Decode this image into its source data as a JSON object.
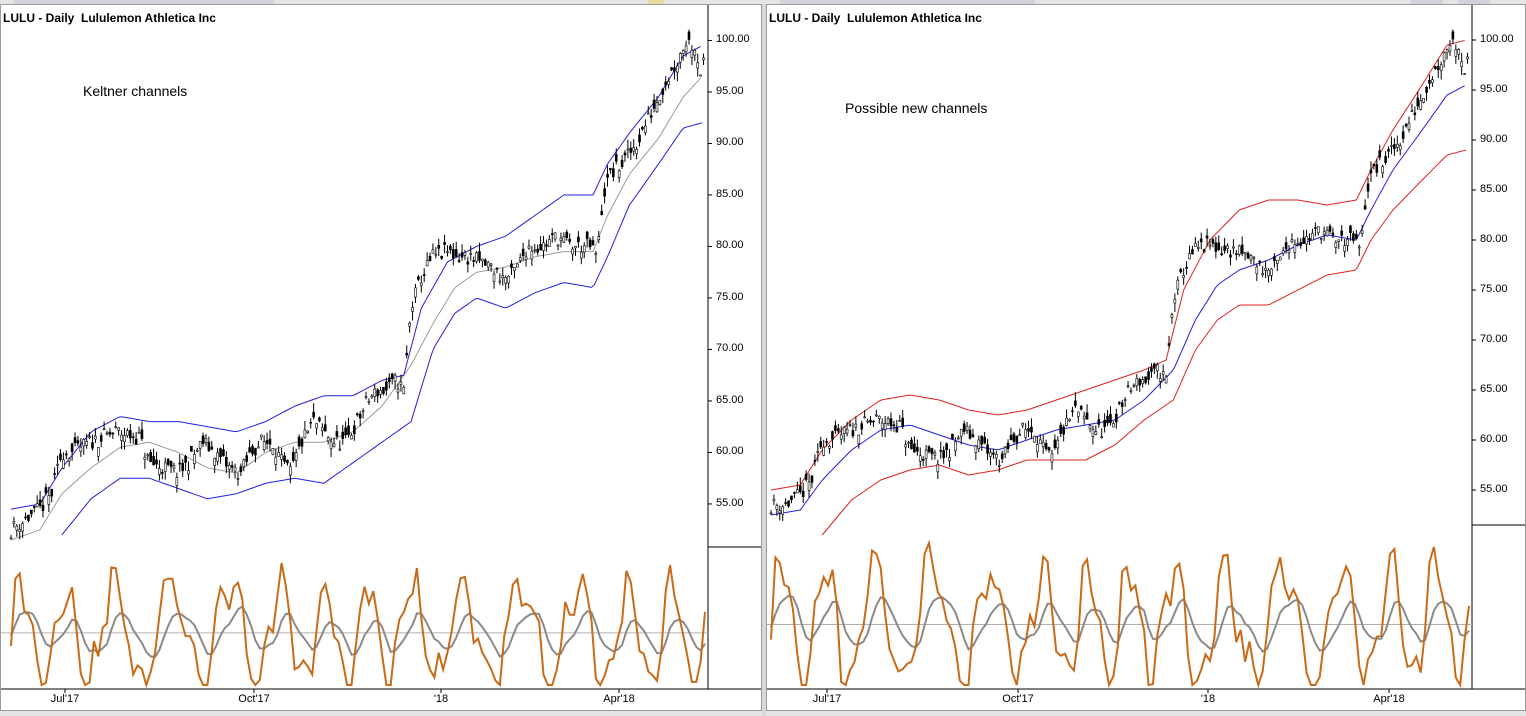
{
  "window": {
    "left_pane_title": "LULU - Daily  Lululemon Athletica Inc",
    "right_pane_title": "LULU - Daily  Lululemon Athletica Inc",
    "left_annotation": "Keltner channels",
    "right_annotation": "Possible new channels",
    "colors": {
      "price": "#000000",
      "mid": "#9a9a9a",
      "blue": "#2020e0",
      "red": "#e02020",
      "osc": "#c86a18",
      "osc_avg": "#8a8a8a",
      "baseline": "#b0b0b0"
    }
  },
  "chart_data": [
    {
      "type": "candlestick",
      "title": "LULU - Daily  Lululemon Athletica Inc",
      "annotation": "Keltner channels",
      "x_tick_labels": [
        "Jul'17",
        "Oct'17",
        "'18",
        "Apr'18"
      ],
      "y_tick_labels": [
        "100.00",
        "95.00",
        "90.00",
        "85.00",
        "80.00",
        "75.00",
        "70.00",
        "65.00",
        "60.00",
        "55.00"
      ],
      "ylim": [
        51.5,
        101.5
      ],
      "price_close": [
        [
          0,
          52.5
        ],
        [
          10,
          53.5
        ],
        [
          20,
          54.5
        ],
        [
          28,
          56
        ],
        [
          35,
          60
        ],
        [
          42,
          60
        ],
        [
          55,
          61
        ],
        [
          72,
          62
        ],
        [
          88,
          61.5
        ],
        [
          95,
          59
        ],
        [
          105,
          58.5
        ],
        [
          115,
          58
        ],
        [
          122,
          59
        ],
        [
          132,
          61
        ],
        [
          140,
          60
        ],
        [
          150,
          58.5
        ],
        [
          158,
          58
        ],
        [
          165,
          60
        ],
        [
          172,
          61
        ],
        [
          180,
          61
        ],
        [
          186,
          59
        ],
        [
          192,
          58
        ],
        [
          200,
          61
        ],
        [
          208,
          63
        ],
        [
          215,
          62
        ],
        [
          222,
          61
        ],
        [
          230,
          61
        ],
        [
          238,
          63
        ],
        [
          245,
          65
        ],
        [
          252,
          66
        ],
        [
          258,
          66
        ],
        [
          265,
          67
        ],
        [
          270,
          66
        ],
        [
          275,
          74
        ],
        [
          282,
          77
        ],
        [
          290,
          79
        ],
        [
          300,
          79.5
        ],
        [
          308,
          79
        ],
        [
          315,
          79
        ],
        [
          322,
          78.5
        ],
        [
          330,
          78
        ],
        [
          337,
          77
        ],
        [
          343,
          77
        ],
        [
          348,
          78
        ],
        [
          355,
          80
        ],
        [
          365,
          80
        ],
        [
          375,
          81
        ],
        [
          385,
          80
        ],
        [
          392,
          80
        ],
        [
          398,
          80
        ],
        [
          403,
          79
        ],
        [
          407,
          85
        ],
        [
          412,
          87
        ],
        [
          420,
          88
        ],
        [
          430,
          90
        ],
        [
          440,
          93
        ],
        [
          450,
          96
        ],
        [
          458,
          98
        ],
        [
          464,
          100
        ],
        [
          470,
          99.5
        ],
        [
          474,
          97
        ],
        [
          477,
          98
        ]
      ],
      "keltner_mid": [
        [
          0,
          51.5
        ],
        [
          20,
          52.5
        ],
        [
          35,
          56
        ],
        [
          55,
          58.5
        ],
        [
          75,
          60.5
        ],
        [
          95,
          61
        ],
        [
          115,
          60
        ],
        [
          135,
          58.5
        ],
        [
          155,
          58
        ],
        [
          175,
          60
        ],
        [
          195,
          61
        ],
        [
          215,
          61
        ],
        [
          235,
          62
        ],
        [
          255,
          64.5
        ],
        [
          275,
          68.5
        ],
        [
          290,
          72.5
        ],
        [
          305,
          76
        ],
        [
          320,
          77.5
        ],
        [
          340,
          78
        ],
        [
          360,
          79
        ],
        [
          380,
          79.5
        ],
        [
          400,
          79.5
        ],
        [
          410,
          83
        ],
        [
          425,
          87
        ],
        [
          445,
          90.5
        ],
        [
          462,
          94.5
        ],
        [
          475,
          96.5
        ]
      ],
      "upper_band": [
        [
          0,
          54.5
        ],
        [
          20,
          55
        ],
        [
          35,
          58.5
        ],
        [
          55,
          62
        ],
        [
          75,
          63.5
        ],
        [
          95,
          63
        ],
        [
          115,
          63
        ],
        [
          135,
          62.5
        ],
        [
          155,
          62
        ],
        [
          175,
          63
        ],
        [
          195,
          64.5
        ],
        [
          215,
          65.5
        ],
        [
          235,
          65.5
        ],
        [
          255,
          67
        ],
        [
          270,
          67.5
        ],
        [
          282,
          74
        ],
        [
          300,
          78.5
        ],
        [
          320,
          80
        ],
        [
          340,
          81
        ],
        [
          360,
          83
        ],
        [
          380,
          85
        ],
        [
          400,
          85
        ],
        [
          410,
          88
        ],
        [
          425,
          91
        ],
        [
          445,
          94.5
        ],
        [
          462,
          98.5
        ],
        [
          475,
          99.5
        ]
      ],
      "lower_band": [
        [
          35,
          52
        ],
        [
          55,
          55.5
        ],
        [
          75,
          57.5
        ],
        [
          95,
          57.5
        ],
        [
          115,
          56.5
        ],
        [
          135,
          55.5
        ],
        [
          155,
          56
        ],
        [
          175,
          57
        ],
        [
          195,
          57.5
        ],
        [
          215,
          57
        ],
        [
          235,
          59
        ],
        [
          255,
          61
        ],
        [
          275,
          63
        ],
        [
          290,
          70
        ],
        [
          305,
          73.5
        ],
        [
          320,
          75
        ],
        [
          340,
          74
        ],
        [
          360,
          75.5
        ],
        [
          380,
          76.5
        ],
        [
          400,
          76
        ],
        [
          410,
          79
        ],
        [
          425,
          84
        ],
        [
          445,
          88
        ],
        [
          462,
          91.5
        ],
        [
          475,
          92
        ]
      ]
    },
    {
      "type": "candlestick",
      "title": "LULU - Daily  Lululemon Athletica Inc",
      "annotation": "Possible new channels",
      "x_tick_labels": [
        "Jul'17",
        "Oct'17",
        "'18",
        "Apr'18"
      ],
      "y_tick_labels": [
        "100.00",
        "95.00",
        "90.00",
        "85.00",
        "80.00",
        "75.00",
        "70.00",
        "65.00",
        "60.00",
        "55.00"
      ],
      "ylim": [
        51.5,
        101.5
      ],
      "price_close": [
        [
          0,
          53.5
        ],
        [
          10,
          53.5
        ],
        [
          20,
          54.5
        ],
        [
          28,
          56
        ],
        [
          35,
          60
        ],
        [
          42,
          60
        ],
        [
          55,
          61
        ],
        [
          72,
          62
        ],
        [
          88,
          61.5
        ],
        [
          95,
          59
        ],
        [
          105,
          58.5
        ],
        [
          115,
          58
        ],
        [
          122,
          59
        ],
        [
          132,
          61
        ],
        [
          140,
          60
        ],
        [
          150,
          58.5
        ],
        [
          158,
          58
        ],
        [
          165,
          60
        ],
        [
          172,
          61
        ],
        [
          180,
          61
        ],
        [
          186,
          59
        ],
        [
          192,
          58
        ],
        [
          200,
          61
        ],
        [
          208,
          63
        ],
        [
          215,
          62
        ],
        [
          222,
          61
        ],
        [
          230,
          61
        ],
        [
          238,
          63
        ],
        [
          245,
          65
        ],
        [
          252,
          66
        ],
        [
          258,
          66
        ],
        [
          265,
          67
        ],
        [
          270,
          66
        ],
        [
          275,
          74
        ],
        [
          282,
          77
        ],
        [
          290,
          79
        ],
        [
          300,
          79.5
        ],
        [
          308,
          79
        ],
        [
          315,
          79
        ],
        [
          322,
          78.5
        ],
        [
          330,
          78
        ],
        [
          337,
          77
        ],
        [
          343,
          77
        ],
        [
          348,
          78
        ],
        [
          355,
          80
        ],
        [
          365,
          80
        ],
        [
          375,
          81
        ],
        [
          385,
          80
        ],
        [
          392,
          80
        ],
        [
          398,
          80
        ],
        [
          403,
          79
        ],
        [
          407,
          85
        ],
        [
          412,
          87
        ],
        [
          420,
          88
        ],
        [
          430,
          90
        ],
        [
          440,
          93
        ],
        [
          450,
          96
        ],
        [
          458,
          98
        ],
        [
          464,
          100
        ],
        [
          470,
          99.5
        ],
        [
          474,
          97
        ],
        [
          477,
          98
        ]
      ],
      "upper_band": [
        [
          0,
          55
        ],
        [
          20,
          55.5
        ],
        [
          35,
          59
        ],
        [
          55,
          62
        ],
        [
          75,
          64
        ],
        [
          95,
          64.5
        ],
        [
          115,
          64
        ],
        [
          135,
          63
        ],
        [
          155,
          62.5
        ],
        [
          175,
          63
        ],
        [
          195,
          64
        ],
        [
          215,
          65
        ],
        [
          235,
          66
        ],
        [
          255,
          67
        ],
        [
          270,
          68
        ],
        [
          282,
          75
        ],
        [
          300,
          80
        ],
        [
          320,
          83
        ],
        [
          340,
          84
        ],
        [
          360,
          84
        ],
        [
          380,
          83.5
        ],
        [
          400,
          84
        ],
        [
          410,
          87
        ],
        [
          425,
          91
        ],
        [
          445,
          95.5
        ],
        [
          462,
          99.5
        ],
        [
          475,
          100
        ]
      ],
      "lower_band": [
        [
          35,
          50.5
        ],
        [
          55,
          54
        ],
        [
          75,
          56
        ],
        [
          95,
          57
        ],
        [
          115,
          57.5
        ],
        [
          135,
          56.5
        ],
        [
          155,
          57
        ],
        [
          175,
          58
        ],
        [
          195,
          58
        ],
        [
          215,
          58
        ],
        [
          235,
          59.5
        ],
        [
          255,
          62
        ],
        [
          275,
          64
        ],
        [
          290,
          69
        ],
        [
          305,
          72
        ],
        [
          320,
          73.5
        ],
        [
          340,
          73.5
        ],
        [
          360,
          75
        ],
        [
          380,
          76.5
        ],
        [
          400,
          77
        ],
        [
          410,
          80
        ],
        [
          425,
          83
        ],
        [
          445,
          86
        ],
        [
          462,
          88.5
        ],
        [
          475,
          89
        ]
      ],
      "blue_line": [
        [
          0,
          52.5
        ],
        [
          20,
          53
        ],
        [
          35,
          56
        ],
        [
          55,
          59
        ],
        [
          75,
          61
        ],
        [
          95,
          61.5
        ],
        [
          115,
          60.5
        ],
        [
          135,
          59.5
        ],
        [
          155,
          59
        ],
        [
          175,
          60
        ],
        [
          195,
          61
        ],
        [
          215,
          61.5
        ],
        [
          235,
          62
        ],
        [
          255,
          64
        ],
        [
          275,
          67
        ],
        [
          290,
          72
        ],
        [
          305,
          75.5
        ],
        [
          320,
          77
        ],
        [
          340,
          78
        ],
        [
          360,
          79.5
        ],
        [
          380,
          80.5
        ],
        [
          400,
          80
        ],
        [
          410,
          83
        ],
        [
          425,
          87
        ],
        [
          445,
          91
        ],
        [
          462,
          94.5
        ],
        [
          475,
          95.5
        ]
      ]
    }
  ]
}
